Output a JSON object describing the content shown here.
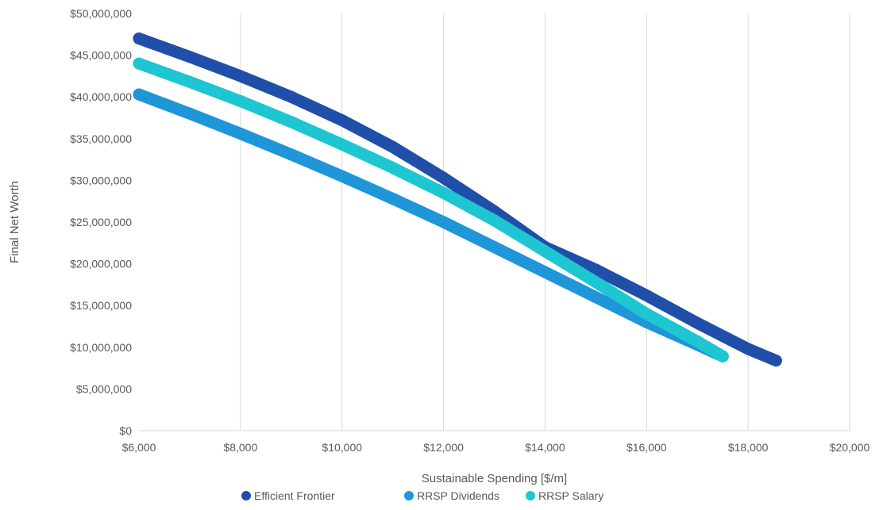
{
  "chart_data": {
    "type": "scatter",
    "title": "",
    "xlabel": "Sustainable Spending [$/m]",
    "ylabel": "Final Net Worth",
    "xlim": [
      6000,
      20000
    ],
    "ylim": [
      0,
      50000000
    ],
    "xticks": [
      6000,
      8000,
      10000,
      12000,
      14000,
      16000,
      18000,
      20000
    ],
    "yticks": [
      0,
      5000000,
      10000000,
      15000000,
      20000000,
      25000000,
      30000000,
      35000000,
      40000000,
      45000000,
      50000000
    ],
    "xtick_labels": [
      "$6,000",
      "$8,000",
      "$10,000",
      "$12,000",
      "$14,000",
      "$16,000",
      "$18,000",
      "$20,000"
    ],
    "ytick_labels": [
      "$0",
      "$5,000,000",
      "$10,000,000",
      "$15,000,000",
      "$20,000,000",
      "$25,000,000",
      "$30,000,000",
      "$35,000,000",
      "$40,000,000",
      "$45,000,000",
      "$50,000,000"
    ],
    "grid": "vertical",
    "legend_position": "bottom",
    "series": [
      {
        "name": "Efficient Frontier",
        "color": "#1f4fa8",
        "x": [
          6000,
          7000,
          8000,
          9000,
          10000,
          11000,
          12000,
          13000,
          14000,
          15000,
          16000,
          17000,
          18000,
          18550
        ],
        "y": [
          47000000,
          44800000,
          42500000,
          40000000,
          37200000,
          34000000,
          30300000,
          26300000,
          22000000,
          19300000,
          16200000,
          12900000,
          9800000,
          8400000
        ]
      },
      {
        "name": "RRSP Dividends",
        "color": "#1e96d8",
        "x": [
          6000,
          7000,
          8000,
          9000,
          10000,
          11000,
          12000,
          13000,
          14000,
          15000,
          16000,
          17000,
          17500
        ],
        "y": [
          40300000,
          38000000,
          35600000,
          33100000,
          30500000,
          27800000,
          25000000,
          22000000,
          19000000,
          16000000,
          13000000,
          10300000,
          8900000
        ]
      },
      {
        "name": "RRSP Salary",
        "color": "#1ec6d2",
        "x": [
          6000,
          7000,
          8000,
          9000,
          10000,
          11000,
          12000,
          13000,
          14000,
          15000,
          16000,
          17000,
          17500
        ],
        "y": [
          44000000,
          41800000,
          39500000,
          37000000,
          34300000,
          31500000,
          28500000,
          25200000,
          21500000,
          17800000,
          14000000,
          10700000,
          8900000
        ]
      }
    ]
  }
}
